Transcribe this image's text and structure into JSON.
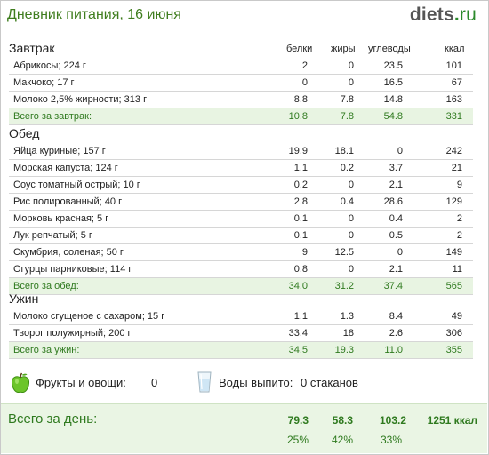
{
  "header": {
    "title": "Дневник питания, 16 июня",
    "logo_main": "diets",
    "logo_dot": ".",
    "logo_tld": "ru"
  },
  "columns": {
    "protein": "белки",
    "fat": "жиры",
    "carbs": "углеводы",
    "kcal": "ккал"
  },
  "meals": [
    {
      "title": "Завтрак",
      "items": [
        {
          "name": "Абрикосы; 224 г",
          "protein": "2",
          "fat": "0",
          "carbs": "23.5",
          "kcal": "101"
        },
        {
          "name": "Макчоко; 17 г",
          "protein": "0",
          "fat": "0",
          "carbs": "16.5",
          "kcal": "67"
        },
        {
          "name": "Молоко 2,5% жирности; 313 г",
          "protein": "8.8",
          "fat": "7.8",
          "carbs": "14.8",
          "kcal": "163"
        }
      ],
      "total": {
        "label": "Всего за завтрак:",
        "protein": "10.8",
        "fat": "7.8",
        "carbs": "54.8",
        "kcal": "331"
      }
    },
    {
      "title": "Обед",
      "items": [
        {
          "name": "Яйца куриные; 157 г",
          "protein": "19.9",
          "fat": "18.1",
          "carbs": "0",
          "kcal": "242"
        },
        {
          "name": "Морская капуста; 124 г",
          "protein": "1.1",
          "fat": "0.2",
          "carbs": "3.7",
          "kcal": "21"
        },
        {
          "name": "Соус томатный острый; 10 г",
          "protein": "0.2",
          "fat": "0",
          "carbs": "2.1",
          "kcal": "9"
        },
        {
          "name": "Рис полированный; 40 г",
          "protein": "2.8",
          "fat": "0.4",
          "carbs": "28.6",
          "kcal": "129"
        },
        {
          "name": "Морковь красная; 5 г",
          "protein": "0.1",
          "fat": "0",
          "carbs": "0.4",
          "kcal": "2"
        },
        {
          "name": "Лук репчатый; 5 г",
          "protein": "0.1",
          "fat": "0",
          "carbs": "0.5",
          "kcal": "2"
        },
        {
          "name": "Скумбрия, соленая; 50 г",
          "protein": "9",
          "fat": "12.5",
          "carbs": "0",
          "kcal": "149"
        },
        {
          "name": "Огурцы парниковые; 114 г",
          "protein": "0.8",
          "fat": "0",
          "carbs": "2.1",
          "kcal": "11"
        }
      ],
      "total": {
        "label": "Всего за обед:",
        "protein": "34.0",
        "fat": "31.2",
        "carbs": "37.4",
        "kcal": "565"
      }
    },
    {
      "title": "Ужин",
      "items": [
        {
          "name": "Молоко сгущеное с сахаром; 15 г",
          "protein": "1.1",
          "fat": "1.3",
          "carbs": "8.4",
          "kcal": "49"
        },
        {
          "name": "Творог полужирный; 200 г",
          "protein": "33.4",
          "fat": "18",
          "carbs": "2.6",
          "kcal": "306"
        }
      ],
      "total": {
        "label": "Всего за ужин:",
        "protein": "34.5",
        "fat": "19.3",
        "carbs": "11.0",
        "kcal": "355"
      }
    }
  ],
  "extras": {
    "fruits_label": "Фрукты и овощи:",
    "fruits_value": "0",
    "water_label": "Воды выпито:",
    "water_value": "0 стаканов",
    "icons": {
      "fruits": "apple-icon",
      "water": "glass-icon"
    }
  },
  "day_total": {
    "label": "Всего за день:",
    "protein": "79.3",
    "fat": "58.3",
    "carbs": "103.2",
    "kcal": "1251 ккал",
    "protein_pct": "25%",
    "fat_pct": "42%",
    "carbs_pct": "33%"
  },
  "colors": {
    "title_green": "#3f7d1e",
    "total_green": "#2f7a1f",
    "total_bg": "#e8f4e2",
    "apple_green": "#6cc52a"
  }
}
